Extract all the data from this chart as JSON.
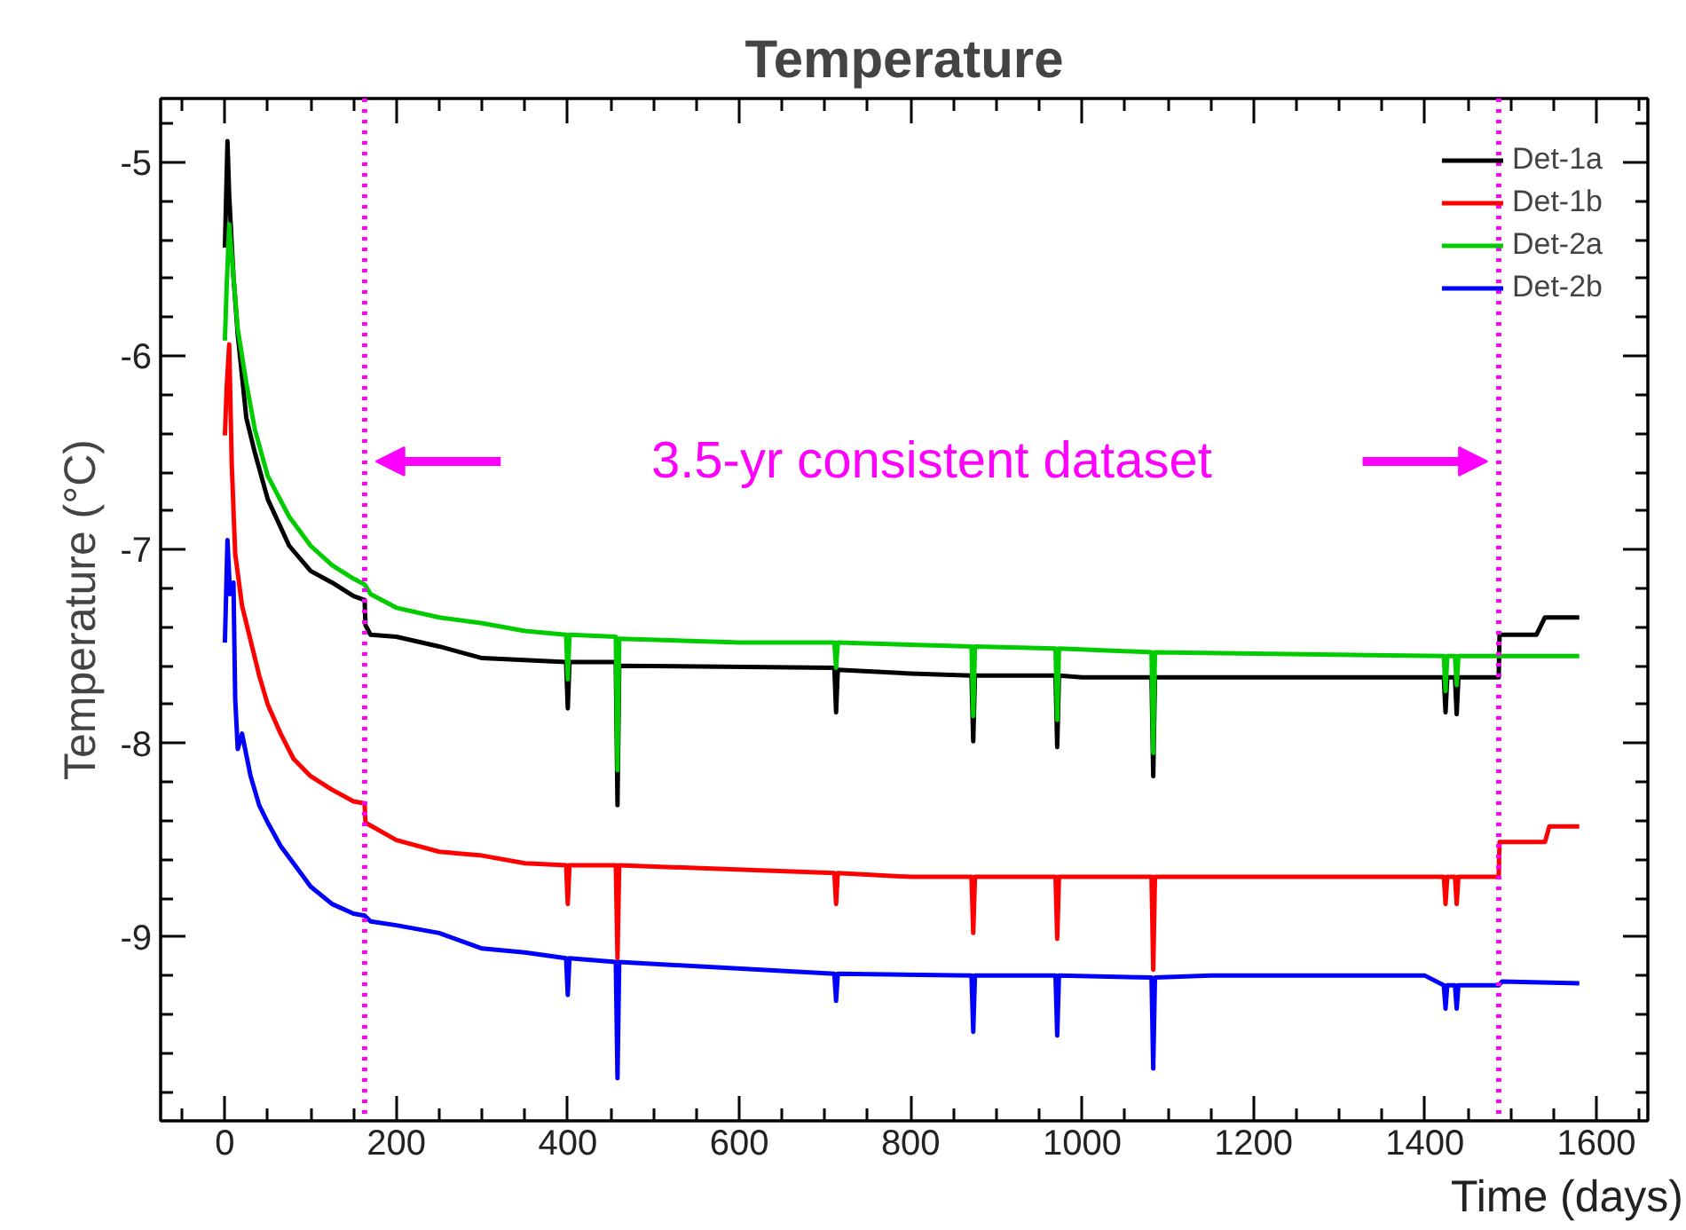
{
  "chart_data": {
    "type": "line",
    "title": "Temperature",
    "xlabel": "Time (days)",
    "ylabel": "Temperature (°C)",
    "xlim": [
      -75,
      1660
    ],
    "ylim": [
      -9.95,
      -4.67
    ],
    "xticks": [
      {
        "value": -50,
        "label": null
      },
      0,
      {
        "value": 50,
        "label": null
      },
      {
        "value": 100,
        "label": null
      },
      {
        "value": 150,
        "label": null
      },
      200,
      {
        "value": 250,
        "label": null
      },
      {
        "value": 300,
        "label": null
      },
      {
        "value": 350,
        "label": null
      },
      400,
      {
        "value": 450,
        "label": null
      },
      {
        "value": 500,
        "label": null
      },
      {
        "value": 550,
        "label": null
      },
      600,
      {
        "value": 650,
        "label": null
      },
      {
        "value": 700,
        "label": null
      },
      {
        "value": 750,
        "label": null
      },
      800,
      {
        "value": 850,
        "label": null
      },
      {
        "value": 900,
        "label": null
      },
      {
        "value": 950,
        "label": null
      },
      1000,
      {
        "value": 1050,
        "label": null
      },
      {
        "value": 1100,
        "label": null
      },
      {
        "value": 1150,
        "label": null
      },
      1200,
      {
        "value": 1250,
        "label": null
      },
      {
        "value": 1300,
        "label": null
      },
      {
        "value": 1350,
        "label": null
      },
      1400,
      {
        "value": 1450,
        "label": null
      },
      {
        "value": 1500,
        "label": null
      },
      {
        "value": 1550,
        "label": null
      },
      1600,
      {
        "value": 1650,
        "label": null
      }
    ],
    "yticks": [
      {
        "value": -9.8,
        "label": null
      },
      {
        "value": -9.6,
        "label": null
      },
      {
        "value": -9.4,
        "label": null
      },
      {
        "value": -9.2,
        "label": null
      },
      -9,
      {
        "value": -8.8,
        "label": null
      },
      {
        "value": -8.6,
        "label": null
      },
      {
        "value": -8.4,
        "label": null
      },
      {
        "value": -8.2,
        "label": null
      },
      -8,
      {
        "value": -7.8,
        "label": null
      },
      {
        "value": -7.6,
        "label": null
      },
      {
        "value": -7.4,
        "label": null
      },
      {
        "value": -7.2,
        "label": null
      },
      -7,
      {
        "value": -6.8,
        "label": null
      },
      {
        "value": -6.6,
        "label": null
      },
      {
        "value": -6.4,
        "label": null
      },
      {
        "value": -6.2,
        "label": null
      },
      -6,
      {
        "value": -5.8,
        "label": null
      },
      {
        "value": -5.6,
        "label": null
      },
      {
        "value": -5.4,
        "label": null
      },
      {
        "value": -5.2,
        "label": null
      },
      -5,
      {
        "value": -4.8,
        "label": null
      }
    ],
    "grid": false,
    "legend": "top right",
    "line_style": "solid",
    "ref_lines": [
      {
        "axis": "x",
        "value": 163,
        "label": null,
        "color": "#ff00ff",
        "line_style": "dotted"
      },
      {
        "axis": "x",
        "value": 1486,
        "label": null,
        "color": "#ff00ff",
        "line_style": "dotted"
      }
    ],
    "annotations": [
      "3.5-yr consistent dataset"
    ],
    "series": [
      {
        "name": "Det-1a",
        "color": "#000000",
        "x": [
          0,
          3,
          5,
          10,
          15,
          25,
          35,
          50,
          75,
          100,
          125,
          150,
          163,
          164,
          170,
          200,
          250,
          300,
          398,
          400,
          402,
          456,
          458,
          460,
          711,
          713,
          715,
          800,
          871,
          873,
          875,
          969,
          971,
          973,
          1000,
          1081,
          1083,
          1085,
          1422,
          1424,
          1426,
          1435,
          1437,
          1439,
          1486,
          1487,
          1530,
          1540,
          1580
        ],
        "values": [
          -5.44,
          -4.89,
          -5.17,
          -5.59,
          -5.89,
          -6.32,
          -6.5,
          -6.74,
          -6.98,
          -7.11,
          -7.17,
          -7.24,
          -7.26,
          -7.39,
          -7.44,
          -7.45,
          -7.5,
          -7.56,
          -7.58,
          -7.82,
          -7.58,
          -7.58,
          -8.32,
          -7.6,
          -7.61,
          -7.84,
          -7.62,
          -7.64,
          -7.65,
          -7.99,
          -7.65,
          -7.65,
          -8.02,
          -7.65,
          -7.66,
          -7.66,
          -8.17,
          -7.66,
          -7.66,
          -7.84,
          -7.66,
          -7.66,
          -7.85,
          -7.66,
          -7.66,
          -7.44,
          -7.44,
          -7.35,
          -7.35
        ]
      },
      {
        "name": "Det-1b",
        "color": "#ff0000",
        "x": [
          0,
          2,
          5,
          8,
          12,
          20,
          30,
          40,
          50,
          65,
          80,
          100,
          125,
          150,
          163,
          164,
          200,
          250,
          300,
          350,
          398,
          400,
          402,
          456,
          458,
          460,
          711,
          713,
          715,
          800,
          871,
          873,
          875,
          969,
          971,
          973,
          1081,
          1083,
          1085,
          1422,
          1424,
          1426,
          1435,
          1437,
          1439,
          1486,
          1487,
          1540,
          1545,
          1580
        ],
        "values": [
          -6.41,
          -6.17,
          -5.94,
          -6.56,
          -7.02,
          -7.29,
          -7.47,
          -7.65,
          -7.8,
          -7.95,
          -8.08,
          -8.17,
          -8.24,
          -8.3,
          -8.31,
          -8.41,
          -8.5,
          -8.56,
          -8.58,
          -8.62,
          -8.63,
          -8.83,
          -8.63,
          -8.63,
          -9.11,
          -8.63,
          -8.67,
          -8.83,
          -8.67,
          -8.69,
          -8.69,
          -8.98,
          -8.69,
          -8.69,
          -9.01,
          -8.69,
          -8.69,
          -9.17,
          -8.69,
          -8.69,
          -8.83,
          -8.69,
          -8.69,
          -8.83,
          -8.69,
          -8.69,
          -8.51,
          -8.51,
          -8.43,
          -8.43
        ]
      },
      {
        "name": "Det-2a",
        "color": "#00cc00",
        "x": [
          0,
          2,
          5,
          10,
          15,
          25,
          35,
          50,
          75,
          100,
          125,
          150,
          163,
          170,
          200,
          250,
          300,
          350,
          398,
          400,
          402,
          456,
          458,
          460,
          600,
          711,
          713,
          715,
          871,
          873,
          875,
          969,
          971,
          973,
          1081,
          1083,
          1085,
          1422,
          1424,
          1426,
          1435,
          1437,
          1439,
          1580
        ],
        "values": [
          -5.92,
          -5.65,
          -5.32,
          -5.59,
          -5.86,
          -6.14,
          -6.38,
          -6.62,
          -6.83,
          -6.98,
          -7.08,
          -7.15,
          -7.18,
          -7.23,
          -7.3,
          -7.35,
          -7.38,
          -7.42,
          -7.44,
          -7.67,
          -7.44,
          -7.45,
          -8.14,
          -7.46,
          -7.48,
          -7.48,
          -7.61,
          -7.48,
          -7.5,
          -7.86,
          -7.5,
          -7.51,
          -7.88,
          -7.51,
          -7.53,
          -8.05,
          -7.53,
          -7.55,
          -7.73,
          -7.55,
          -7.55,
          -7.7,
          -7.55,
          -7.55
        ]
      },
      {
        "name": "Det-2b",
        "color": "#0000ff",
        "x": [
          0,
          3,
          6,
          10,
          12,
          15,
          20,
          30,
          40,
          50,
          65,
          80,
          100,
          125,
          150,
          163,
          170,
          200,
          250,
          300,
          350,
          398,
          400,
          402,
          456,
          458,
          460,
          711,
          713,
          715,
          871,
          873,
          875,
          969,
          971,
          973,
          1081,
          1083,
          1085,
          1150,
          1400,
          1422,
          1424,
          1426,
          1435,
          1437,
          1439,
          1486,
          1490,
          1580
        ],
        "values": [
          -7.48,
          -6.95,
          -7.23,
          -7.17,
          -7.77,
          -8.03,
          -7.95,
          -8.17,
          -8.32,
          -8.41,
          -8.53,
          -8.62,
          -8.74,
          -8.83,
          -8.88,
          -8.89,
          -8.92,
          -8.94,
          -8.98,
          -9.06,
          -9.08,
          -9.11,
          -9.3,
          -9.11,
          -9.13,
          -9.73,
          -9.13,
          -9.19,
          -9.33,
          -9.19,
          -9.2,
          -9.49,
          -9.2,
          -9.2,
          -9.51,
          -9.2,
          -9.21,
          -9.68,
          -9.21,
          -9.2,
          -9.2,
          -9.25,
          -9.37,
          -9.25,
          -9.25,
          -9.37,
          -9.25,
          -9.25,
          -9.23,
          -9.24
        ]
      }
    ]
  }
}
